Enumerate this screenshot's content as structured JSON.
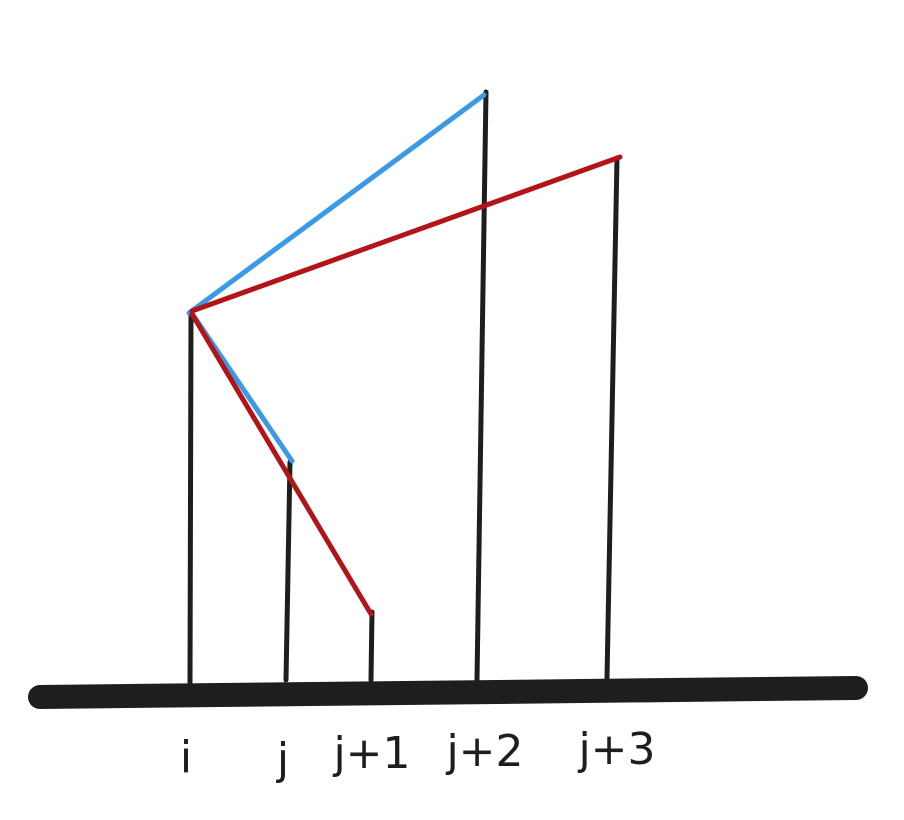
{
  "diagram": {
    "labels": {
      "i": "i",
      "j": "j",
      "j1": "j+1",
      "j2": "j+2",
      "j3": "j+3"
    },
    "colors": {
      "baseline": "#1e1e1e",
      "pillar": "#1e1e1e",
      "blue_line": "#3a9ae8",
      "red_line": "#b31417"
    }
  }
}
